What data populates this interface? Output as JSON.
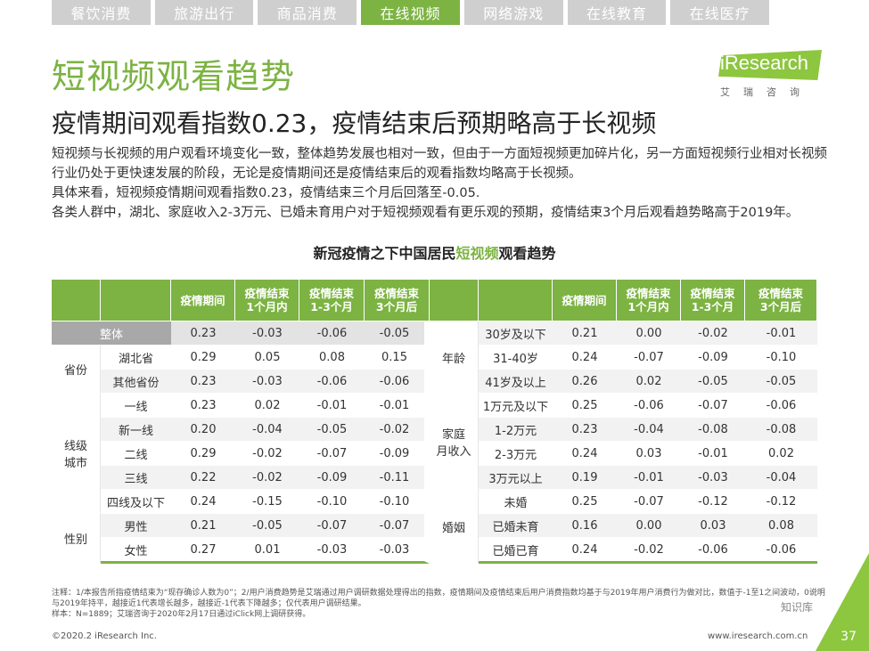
{
  "tabs": [
    "餐饮消费",
    "旅游出行",
    "商品消费",
    "在线视频",
    "网络游戏",
    "在线教育",
    "在线医疗"
  ],
  "active_tab": "在线视频",
  "title": "短视频观看趋势",
  "subtitle": "疫情期间观看指数0.23，疫情结束后预期略高于长视频",
  "logo": {
    "text": "iResearch",
    "cn": "艾瑞咨询"
  },
  "paragraphs": [
    "短视频与长视频的用户观看环境变化一致，整体趋势发展也相对一致，但由于一方面短视频更加碎片化，另一方面短视频行业相对长视频行业仍处于更快速发展的阶段，无论是疫情期间还是疫情结束后的观看指数均略高于长视频。",
    "具体来看，短视频疫情期间观看指数0.23，疫情结束三个月后回落至-0.05.",
    "各类人群中，湖北、家庭收入2-3万元、已婚未育用户对于短视频观看有更乐观的预期，疫情结束3个月后观看趋势略高于2019年。"
  ],
  "table_title": {
    "prefix": "新冠疫情之下中国居民",
    "highlight": "短视频",
    "suffix": "观看趋势"
  },
  "headers": [
    "疫情期间",
    "疫情结束\n1个月内",
    "疫情结束\n1-3个月",
    "疫情结束\n3个月后"
  ],
  "left_groups": {
    "total": {
      "label": "整体",
      "values": [
        "0.23",
        "-0.03",
        "-0.06",
        "-0.05"
      ]
    },
    "province": {
      "label": "省份",
      "rows": [
        {
          "label": "湖北省",
          "values": [
            "0.29",
            "0.05",
            "0.08",
            "0.15"
          ]
        },
        {
          "label": "其他省份",
          "values": [
            "0.23",
            "-0.03",
            "-0.06",
            "-0.06"
          ]
        }
      ]
    },
    "city": {
      "label": "线级\n城市",
      "rows": [
        {
          "label": "一线",
          "values": [
            "0.23",
            "0.02",
            "-0.01",
            "-0.01"
          ]
        },
        {
          "label": "新一线",
          "values": [
            "0.20",
            "-0.04",
            "-0.05",
            "-0.02"
          ]
        },
        {
          "label": "二线",
          "values": [
            "0.29",
            "-0.02",
            "-0.07",
            "-0.09"
          ]
        },
        {
          "label": "三线",
          "values": [
            "0.22",
            "-0.02",
            "-0.09",
            "-0.11"
          ]
        },
        {
          "label": "四线及以下",
          "values": [
            "0.24",
            "-0.15",
            "-0.10",
            "-0.10"
          ]
        }
      ]
    },
    "gender": {
      "label": "性别",
      "rows": [
        {
          "label": "男性",
          "values": [
            "0.21",
            "-0.05",
            "-0.07",
            "-0.07"
          ]
        },
        {
          "label": "女性",
          "values": [
            "0.27",
            "0.01",
            "-0.03",
            "-0.03"
          ]
        }
      ]
    }
  },
  "right_groups": {
    "age": {
      "label": "年龄",
      "rows": [
        {
          "label": "30岁及以下",
          "values": [
            "0.21",
            "0.00",
            "-0.02",
            "-0.01"
          ]
        },
        {
          "label": "31-40岁",
          "values": [
            "0.24",
            "-0.07",
            "-0.09",
            "-0.10"
          ]
        },
        {
          "label": "41岁及以上",
          "values": [
            "0.26",
            "0.02",
            "-0.05",
            "-0.05"
          ]
        }
      ]
    },
    "income": {
      "label": "家庭\n月收入",
      "rows": [
        {
          "label": "1万元及以下",
          "values": [
            "0.25",
            "-0.06",
            "-0.07",
            "-0.06"
          ]
        },
        {
          "label": "1-2万元",
          "values": [
            "0.23",
            "-0.04",
            "-0.08",
            "-0.08"
          ]
        },
        {
          "label": "2-3万元",
          "values": [
            "0.24",
            "0.03",
            "-0.01",
            "0.02"
          ]
        },
        {
          "label": "3万元以上",
          "values": [
            "0.19",
            "-0.01",
            "-0.03",
            "-0.04"
          ]
        }
      ]
    },
    "marriage": {
      "label": "婚姻",
      "rows": [
        {
          "label": "未婚",
          "values": [
            "0.25",
            "-0.07",
            "-0.12",
            "-0.12"
          ]
        },
        {
          "label": "已婚未育",
          "values": [
            "0.16",
            "0.00",
            "0.03",
            "0.08"
          ]
        },
        {
          "label": "已婚已育",
          "values": [
            "0.24",
            "-0.02",
            "-0.06",
            "-0.06"
          ]
        }
      ]
    }
  },
  "notes": [
    "注释：1/本报告所指疫情结束为“现存确诊人数为0”；2/用户消费趋势是艾瑞通过用户调研数据处理得出的指数，疫情期间及疫情结束后用户消费指数均基于与2019年用户消费行为做对比，数值于-1至1之间波动，0说明与2019年持平，越接近1代表增长越多，越接近-1代表下降越多；仅代表用户调研结果。",
    "样本：N=1889；艾瑞咨询于2020年2月17日通过iClick网上调研获得。"
  ],
  "footer_left": "©2020.2 iResearch Inc.",
  "footer_right": "www.iresearch.com.cn",
  "watermark": "知识库",
  "page_number": "37",
  "colors": {
    "accent": "#7cb342",
    "tab_inactive": "#cfcfcf",
    "total_row": "#a8a8a8"
  }
}
